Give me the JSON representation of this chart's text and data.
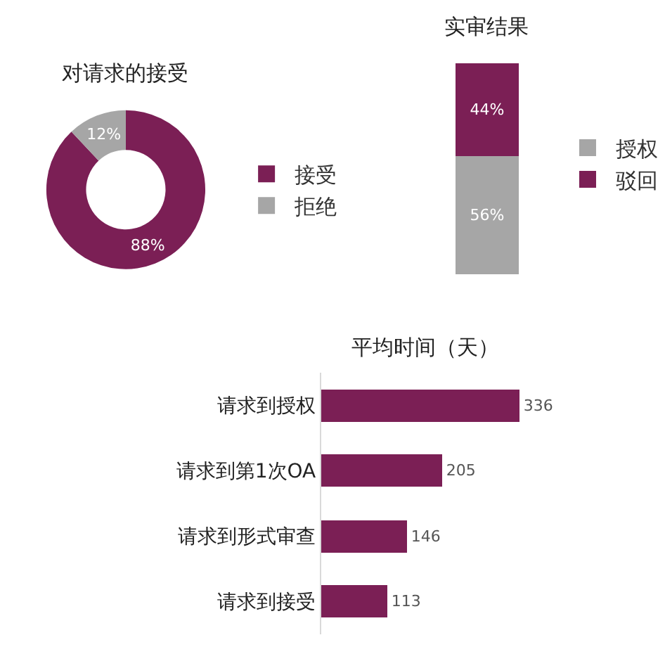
{
  "chart_data": [
    {
      "type": "donut",
      "title": "对请求的接受",
      "categories": [
        "接受",
        "拒绝"
      ],
      "values": [
        88,
        12
      ],
      "colors": [
        "#7b1f55",
        "#a6a6a6"
      ],
      "value_labels": [
        "88%",
        "12%"
      ],
      "legend": "right"
    },
    {
      "type": "bar",
      "title": "实审结果",
      "stacked": true,
      "categories": [
        null
      ],
      "series": [
        {
          "name": "授权",
          "color": "#a6a6a6",
          "values": [
            56
          ],
          "value_labels": [
            "56%"
          ]
        },
        {
          "name": "驳回",
          "color": "#7b1f55",
          "values": [
            44
          ],
          "value_labels": [
            "44%"
          ]
        }
      ],
      "legend": "right",
      "tick_labels": false
    },
    {
      "type": "bar",
      "title": "平均时间（天）",
      "orientation": "horizontal",
      "categories": [
        "请求到授权",
        "请求到第1次OA",
        "请求到形式审查",
        "请求到接受"
      ],
      "values": [
        336,
        205,
        146,
        113
      ],
      "color": "#7b1f55",
      "data_labels": true,
      "tick_labels": "y"
    }
  ]
}
